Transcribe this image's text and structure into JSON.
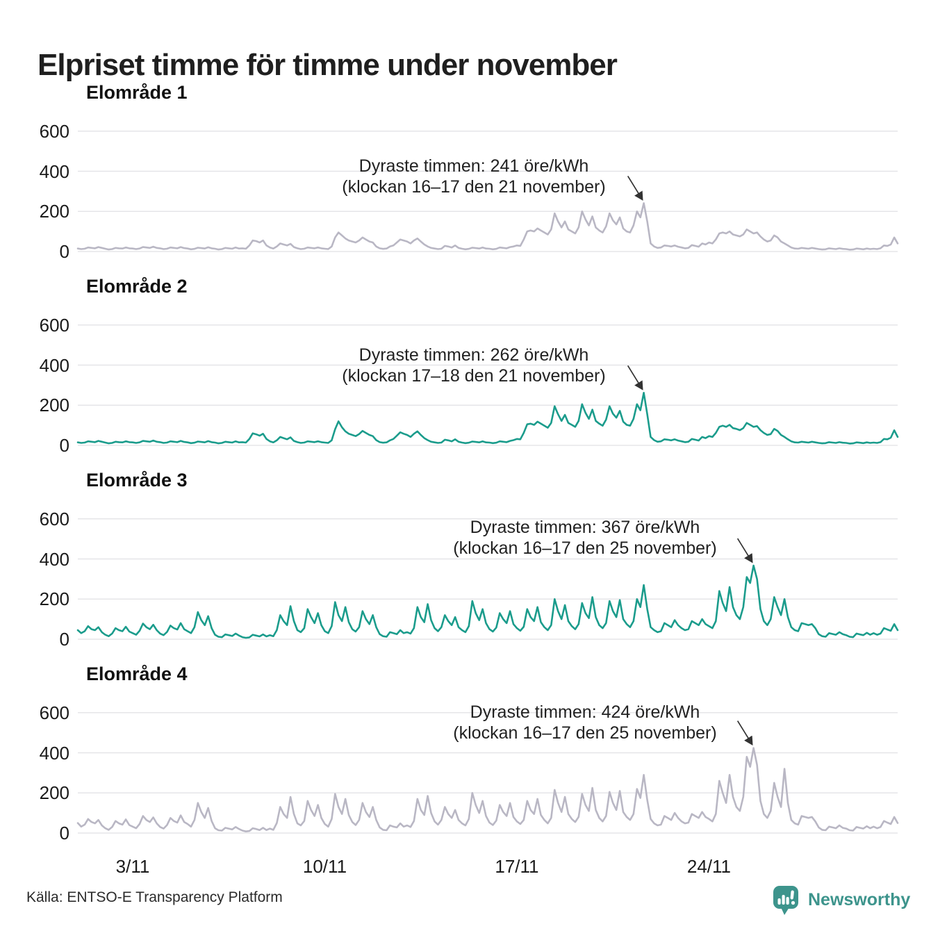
{
  "title": "Elpriset timme för timme under november",
  "source": "Källa: ENTSO-E Transparency Platform",
  "brand": {
    "name": "Newsworthy",
    "color": "#3d948c",
    "icon": "bar-chart-speech-bubble-icon"
  },
  "colors": {
    "gray_line": "#b9b7c4",
    "teal_line": "#1b9c8c",
    "grid": "#e5e5e8",
    "annotation_arrow": "#333333",
    "title_text": "#1f1f1f"
  },
  "x_axis": {
    "tick_labels": [
      "3/11",
      "10/11",
      "17/11",
      "24/11"
    ],
    "tick_days": [
      3,
      10,
      17,
      24
    ]
  },
  "y_axis": {
    "tick_labels": [
      "0",
      "200",
      "400",
      "600"
    ],
    "tick_values": [
      0,
      200,
      400,
      600
    ],
    "unit": "öre/kWh"
  },
  "chart_data": [
    {
      "type": "line",
      "label": "Elområde 1",
      "color": "#b9b7c4",
      "annotation_line1": "Dyraste timmen: 241 öre/kWh",
      "annotation_line2": "(klockan 16–17 den 21 november)",
      "peak": {
        "value": 241,
        "date": "21 november",
        "hours": "16–17"
      },
      "start_day": 1,
      "samples_per_day": 8,
      "ylim": [
        0,
        700
      ],
      "series": [
        15,
        12,
        14,
        20,
        18,
        16,
        22,
        18,
        14,
        10,
        12,
        18,
        16,
        15,
        20,
        16,
        15,
        12,
        15,
        22,
        20,
        18,
        24,
        18,
        16,
        12,
        14,
        20,
        18,
        16,
        22,
        17,
        15,
        11,
        13,
        19,
        17,
        15,
        21,
        16,
        14,
        10,
        12,
        18,
        16,
        14,
        20,
        15,
        16,
        14,
        30,
        55,
        52,
        45,
        55,
        30,
        20,
        15,
        25,
        40,
        35,
        30,
        38,
        22,
        16,
        12,
        14,
        20,
        18,
        16,
        20,
        16,
        14,
        12,
        25,
        70,
        95,
        80,
        65,
        55,
        50,
        45,
        55,
        70,
        60,
        50,
        45,
        25,
        16,
        13,
        15,
        25,
        30,
        45,
        60,
        55,
        50,
        40,
        55,
        65,
        50,
        35,
        25,
        18,
        15,
        12,
        14,
        28,
        25,
        20,
        30,
        18,
        14,
        11,
        13,
        19,
        17,
        15,
        20,
        15,
        14,
        11,
        13,
        20,
        18,
        16,
        22,
        25,
        30,
        28,
        60,
        100,
        105,
        100,
        115,
        105,
        95,
        85,
        110,
        190,
        150,
        120,
        150,
        110,
        100,
        90,
        120,
        200,
        160,
        130,
        175,
        120,
        105,
        95,
        125,
        190,
        155,
        135,
        170,
        115,
        100,
        95,
        130,
        200,
        170,
        241,
        150,
        40,
        25,
        18,
        20,
        30,
        28,
        25,
        30,
        24,
        20,
        16,
        18,
        32,
        28,
        24,
        40,
        35,
        45,
        40,
        60,
        90,
        95,
        90,
        100,
        85,
        80,
        75,
        85,
        110,
        100,
        90,
        95,
        75,
        60,
        50,
        55,
        80,
        70,
        50,
        40,
        30,
        20,
        15,
        14,
        18,
        16,
        14,
        18,
        15,
        12,
        10,
        11,
        16,
        14,
        12,
        16,
        13,
        12,
        9,
        10,
        15,
        13,
        11,
        15,
        12,
        14,
        12,
        16,
        30,
        28,
        35,
        70,
        40
      ]
    },
    {
      "type": "line",
      "label": "Elområde 2",
      "color": "#1b9c8c",
      "annotation_line1": "Dyraste timmen: 262 öre/kWh",
      "annotation_line2": "(klockan 17–18 den 21 november)",
      "peak": {
        "value": 262,
        "date": "21 november",
        "hours": "17–18"
      },
      "start_day": 1,
      "samples_per_day": 8,
      "ylim": [
        0,
        700
      ],
      "series": [
        15,
        12,
        14,
        20,
        18,
        16,
        22,
        18,
        14,
        10,
        12,
        18,
        16,
        15,
        20,
        16,
        15,
        12,
        15,
        22,
        20,
        18,
        24,
        18,
        16,
        12,
        14,
        20,
        18,
        16,
        22,
        17,
        15,
        11,
        13,
        19,
        17,
        15,
        21,
        16,
        14,
        10,
        12,
        18,
        16,
        14,
        20,
        15,
        16,
        14,
        32,
        60,
        55,
        48,
        58,
        32,
        20,
        15,
        25,
        42,
        36,
        30,
        40,
        22,
        16,
        12,
        14,
        20,
        18,
        16,
        20,
        16,
        14,
        12,
        25,
        80,
        120,
        90,
        70,
        58,
        52,
        46,
        56,
        72,
        62,
        52,
        46,
        26,
        16,
        13,
        15,
        25,
        32,
        48,
        65,
        58,
        52,
        42,
        58,
        70,
        52,
        36,
        26,
        18,
        15,
        12,
        14,
        28,
        25,
        20,
        30,
        18,
        14,
        11,
        13,
        19,
        17,
        15,
        20,
        15,
        14,
        11,
        13,
        20,
        18,
        16,
        22,
        26,
        32,
        30,
        62,
        105,
        108,
        102,
        118,
        108,
        98,
        88,
        112,
        195,
        155,
        122,
        152,
        112,
        102,
        92,
        122,
        205,
        162,
        132,
        178,
        122,
        108,
        98,
        128,
        195,
        158,
        138,
        172,
        118,
        102,
        98,
        132,
        205,
        175,
        262,
        155,
        42,
        26,
        18,
        20,
        30,
        28,
        25,
        30,
        24,
        20,
        16,
        18,
        32,
        28,
        24,
        42,
        36,
        46,
        42,
        62,
        92,
        98,
        92,
        102,
        86,
        82,
        76,
        86,
        112,
        102,
        92,
        96,
        76,
        62,
        52,
        56,
        82,
        72,
        52,
        42,
        30,
        20,
        15,
        14,
        18,
        16,
        14,
        18,
        15,
        12,
        10,
        11,
        16,
        14,
        12,
        16,
        13,
        12,
        9,
        10,
        15,
        13,
        11,
        15,
        12,
        14,
        12,
        16,
        32,
        30,
        38,
        75,
        42
      ]
    },
    {
      "type": "line",
      "label": "Elområde 3",
      "color": "#1b9c8c",
      "annotation_line1": "Dyraste timmen: 367 öre/kWh",
      "annotation_line2": "(klockan 16–17 den 25 november)",
      "peak": {
        "value": 367,
        "date": "25 november",
        "hours": "16–17"
      },
      "start_day": 1,
      "samples_per_day": 8,
      "ylim": [
        0,
        700
      ],
      "series": [
        45,
        30,
        40,
        65,
        50,
        45,
        60,
        35,
        22,
        15,
        28,
        55,
        45,
        40,
        62,
        38,
        30,
        22,
        42,
        78,
        60,
        50,
        72,
        45,
        28,
        20,
        36,
        68,
        55,
        48,
        80,
        50,
        40,
        30,
        60,
        135,
        95,
        70,
        115,
        55,
        22,
        12,
        10,
        24,
        20,
        16,
        28,
        18,
        10,
        7,
        9,
        22,
        18,
        14,
        24,
        14,
        20,
        15,
        45,
        120,
        90,
        70,
        165,
        90,
        45,
        35,
        55,
        150,
        110,
        80,
        130,
        70,
        40,
        30,
        65,
        185,
        120,
        90,
        160,
        85,
        50,
        38,
        60,
        140,
        100,
        75,
        120,
        60,
        25,
        15,
        12,
        35,
        30,
        25,
        45,
        30,
        35,
        28,
        55,
        160,
        110,
        85,
        175,
        95,
        55,
        40,
        60,
        120,
        90,
        70,
        110,
        60,
        45,
        35,
        65,
        190,
        130,
        95,
        150,
        80,
        50,
        38,
        58,
        130,
        100,
        80,
        140,
        75,
        55,
        42,
        62,
        150,
        110,
        90,
        160,
        85,
        60,
        45,
        70,
        200,
        140,
        100,
        170,
        90,
        65,
        50,
        75,
        180,
        130,
        105,
        210,
        110,
        70,
        55,
        80,
        190,
        140,
        110,
        195,
        100,
        75,
        60,
        90,
        200,
        160,
        270,
        150,
        60,
        45,
        35,
        40,
        80,
        70,
        60,
        95,
        70,
        55,
        45,
        50,
        90,
        80,
        70,
        100,
        75,
        65,
        55,
        90,
        240,
        180,
        140,
        260,
        160,
        120,
        100,
        160,
        310,
        280,
        367,
        300,
        150,
        90,
        70,
        100,
        210,
        160,
        120,
        200,
        110,
        60,
        45,
        40,
        80,
        75,
        70,
        75,
        55,
        25,
        15,
        12,
        30,
        26,
        22,
        35,
        25,
        20,
        12,
        10,
        28,
        24,
        20,
        32,
        22,
        30,
        22,
        28,
        55,
        48,
        42,
        75,
        45
      ]
    },
    {
      "type": "line",
      "label": "Elområde 4",
      "color": "#b9b7c4",
      "annotation_line1": "Dyraste timmen: 424 öre/kWh",
      "annotation_line2": "(klockan 16–17 den 25 november)",
      "peak": {
        "value": 424,
        "date": "25 november",
        "hours": "16–17"
      },
      "start_day": 1,
      "samples_per_day": 8,
      "ylim": [
        0,
        700
      ],
      "series": [
        50,
        32,
        42,
        70,
        55,
        48,
        65,
        38,
        24,
        16,
        30,
        60,
        48,
        42,
        68,
        40,
        32,
        24,
        45,
        85,
        65,
        55,
        78,
        48,
        30,
        22,
        40,
        75,
        60,
        52,
        88,
        55,
        45,
        32,
        65,
        150,
        105,
        75,
        125,
        60,
        24,
        14,
        12,
        26,
        22,
        18,
        30,
        20,
        12,
        8,
        10,
        24,
        20,
        15,
        26,
        15,
        22,
        16,
        50,
        130,
        95,
        75,
        180,
        95,
        48,
        38,
        60,
        160,
        115,
        85,
        140,
        75,
        45,
        32,
        70,
        195,
        130,
        95,
        170,
        90,
        55,
        40,
        65,
        150,
        105,
        80,
        130,
        65,
        28,
        16,
        14,
        38,
        32,
        28,
        48,
        32,
        38,
        30,
        60,
        170,
        115,
        90,
        185,
        100,
        58,
        42,
        65,
        130,
        95,
        75,
        115,
        65,
        48,
        38,
        70,
        200,
        140,
        100,
        160,
        85,
        52,
        40,
        62,
        140,
        105,
        85,
        150,
        80,
        58,
        45,
        65,
        160,
        115,
        95,
        170,
        90,
        65,
        48,
        75,
        215,
        150,
        105,
        180,
        95,
        70,
        55,
        80,
        195,
        140,
        110,
        225,
        115,
        75,
        58,
        85,
        205,
        150,
        115,
        210,
        105,
        80,
        65,
        95,
        220,
        175,
        290,
        165,
        70,
        48,
        38,
        42,
        85,
        75,
        65,
        100,
        75,
        58,
        48,
        52,
        95,
        85,
        75,
        105,
        80,
        70,
        58,
        95,
        260,
        200,
        150,
        290,
        180,
        130,
        110,
        180,
        380,
        330,
        424,
        340,
        160,
        95,
        75,
        110,
        250,
        180,
        130,
        320,
        150,
        65,
        48,
        42,
        85,
        80,
        75,
        80,
        58,
        28,
        16,
        14,
        32,
        28,
        24,
        38,
        26,
        22,
        14,
        12,
        30,
        26,
        22,
        34,
        24,
        32,
        24,
        30,
        60,
        52,
        45,
        80,
        50
      ]
    }
  ]
}
